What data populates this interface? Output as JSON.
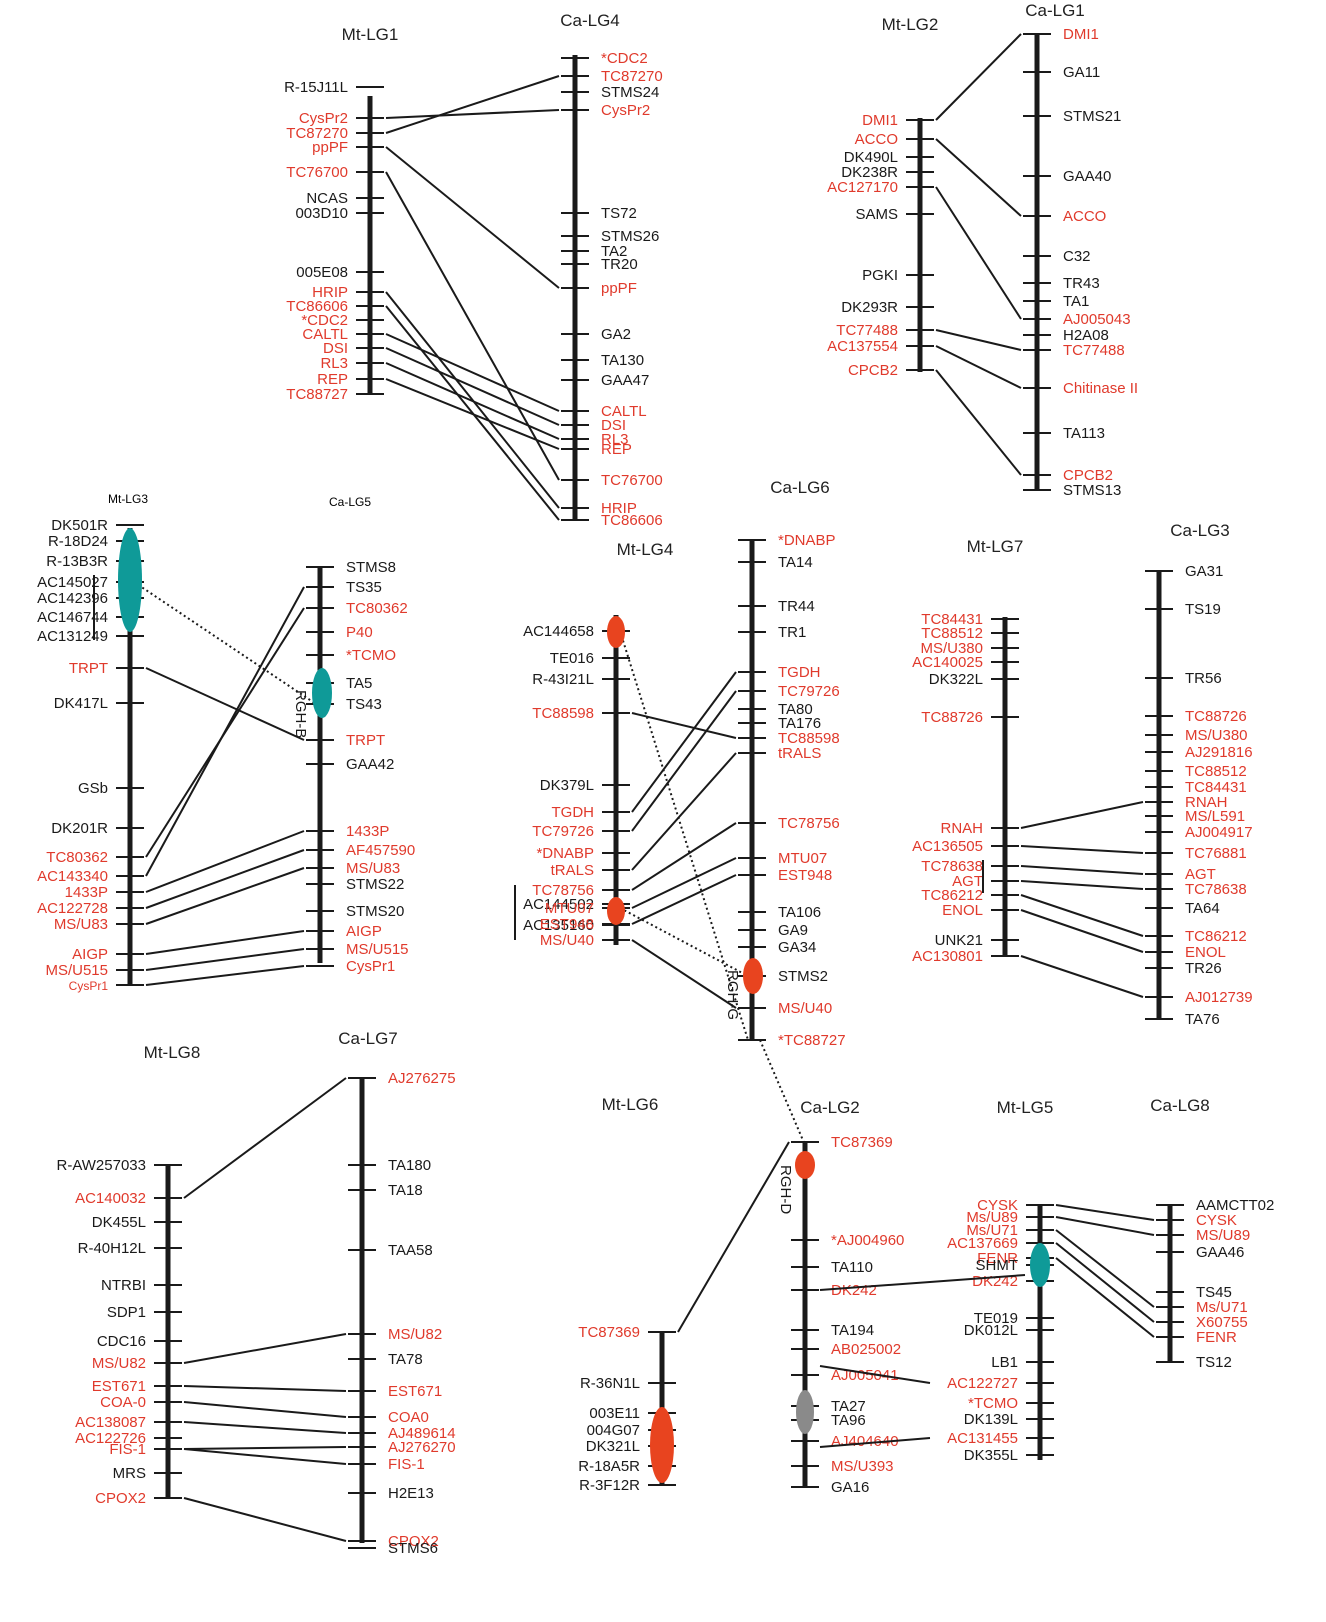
{
  "colors": {
    "red": "#e03a2c",
    "black": "#1a1a1a",
    "teal": "#0f9a98",
    "orange": "#e8441f",
    "grey": "#8a8a8a"
  },
  "pairs": [
    {
      "left": {
        "title": "Mt-LG1",
        "loci": [
          {
            "n": "R-15J11L",
            "c": "k"
          },
          {
            "n": "CysPr2",
            "c": "r"
          },
          {
            "n": "TC87270",
            "c": "r"
          },
          {
            "n": "ppPF",
            "c": "r"
          },
          {
            "n": "TC76700",
            "c": "r"
          },
          {
            "n": "NCAS",
            "c": "k"
          },
          {
            "n": "003D10",
            "c": "k"
          },
          {
            "n": "005E08",
            "c": "k"
          },
          {
            "n": "HRIP",
            "c": "r"
          },
          {
            "n": "TC86606",
            "c": "r"
          },
          {
            "n": "*CDC2",
            "c": "r"
          },
          {
            "n": "CALTL",
            "c": "r"
          },
          {
            "n": "DSI",
            "c": "r"
          },
          {
            "n": "RL3",
            "c": "r"
          },
          {
            "n": "REP",
            "c": "r"
          },
          {
            "n": "TC88727",
            "c": "r"
          }
        ]
      },
      "right": {
        "title": "Ca-LG4",
        "loci": [
          {
            "n": "*CDC2",
            "c": "r"
          },
          {
            "n": "TC87270",
            "c": "r"
          },
          {
            "n": "STMS24",
            "c": "k"
          },
          {
            "n": "CysPr2",
            "c": "r"
          },
          {
            "n": "TS72",
            "c": "k"
          },
          {
            "n": "STMS26",
            "c": "k"
          },
          {
            "n": "TA2",
            "c": "k"
          },
          {
            "n": "TR20",
            "c": "k"
          },
          {
            "n": "ppPF",
            "c": "r"
          },
          {
            "n": "GA2",
            "c": "k"
          },
          {
            "n": "TA130",
            "c": "k"
          },
          {
            "n": "GAA47",
            "c": "k"
          },
          {
            "n": "CALTL",
            "c": "r"
          },
          {
            "n": "DSI",
            "c": "r"
          },
          {
            "n": "RL3",
            "c": "r"
          },
          {
            "n": "REP",
            "c": "r"
          },
          {
            "n": "TC76700",
            "c": "r"
          },
          {
            "n": "HRIP",
            "c": "r"
          },
          {
            "n": "TC86606",
            "c": "r"
          }
        ]
      }
    },
    {
      "left": {
        "title": "Mt-LG2",
        "loci": [
          {
            "n": "DMI1",
            "c": "r"
          },
          {
            "n": "ACCO",
            "c": "r"
          },
          {
            "n": "DK490L",
            "c": "k"
          },
          {
            "n": "DK238R",
            "c": "k"
          },
          {
            "n": "AC127170",
            "c": "r"
          },
          {
            "n": "SAMS",
            "c": "k"
          },
          {
            "n": "PGKI",
            "c": "k"
          },
          {
            "n": "DK293R",
            "c": "k"
          },
          {
            "n": "TC77488",
            "c": "r"
          },
          {
            "n": "AC137554",
            "c": "r"
          },
          {
            "n": "CPCB2",
            "c": "r"
          }
        ]
      },
      "right": {
        "title": "Ca-LG1",
        "loci": [
          {
            "n": "DMI1",
            "c": "r"
          },
          {
            "n": "GA11",
            "c": "k"
          },
          {
            "n": "STMS21",
            "c": "k"
          },
          {
            "n": "GAA40",
            "c": "k"
          },
          {
            "n": "ACCO",
            "c": "r"
          },
          {
            "n": "C32",
            "c": "k"
          },
          {
            "n": "TR43",
            "c": "k"
          },
          {
            "n": "TA1",
            "c": "k"
          },
          {
            "n": "AJ005043",
            "c": "r"
          },
          {
            "n": "H2A08",
            "c": "k"
          },
          {
            "n": "TC77488",
            "c": "r"
          },
          {
            "n": "Chitinase II",
            "c": "r"
          },
          {
            "n": "TA113",
            "c": "k"
          },
          {
            "n": "CPCB2",
            "c": "r"
          },
          {
            "n": "STMS13",
            "c": "k"
          }
        ]
      }
    },
    {
      "left": {
        "title": "Mt-LG3",
        "loci": [
          {
            "n": "DK501R",
            "c": "k"
          },
          {
            "n": "R-18D24",
            "c": "k"
          },
          {
            "n": "R-13B3R",
            "c": "k"
          },
          {
            "n": "AC145027",
            "c": "k"
          },
          {
            "n": "AC142396",
            "c": "k"
          },
          {
            "n": "AC146744",
            "c": "k"
          },
          {
            "n": "AC131249",
            "c": "k"
          },
          {
            "n": "TRPT",
            "c": "r"
          },
          {
            "n": "DK417L",
            "c": "k"
          },
          {
            "n": "GSb",
            "c": "k"
          },
          {
            "n": "DK201R",
            "c": "k"
          },
          {
            "n": "TC80362",
            "c": "r"
          },
          {
            "n": "AC143340",
            "c": "r"
          },
          {
            "n": "1433P",
            "c": "r"
          },
          {
            "n": "AC122728",
            "c": "r"
          },
          {
            "n": "MS/U83",
            "c": "r"
          },
          {
            "n": "AIGP",
            "c": "r"
          },
          {
            "n": "MS/U515",
            "c": "r"
          },
          {
            "n": "CysPr1",
            "c": "r"
          }
        ]
      },
      "right": {
        "title": "Ca-LG5",
        "qtl": "RGH-B",
        "loci": [
          {
            "n": "STMS8",
            "c": "k"
          },
          {
            "n": "TS35",
            "c": "k"
          },
          {
            "n": "TC80362",
            "c": "r"
          },
          {
            "n": "P40",
            "c": "r"
          },
          {
            "n": "*TCMO",
            "c": "r"
          },
          {
            "n": "TA5",
            "c": "k"
          },
          {
            "n": "TS43",
            "c": "k"
          },
          {
            "n": "TRPT",
            "c": "r"
          },
          {
            "n": "GAA42",
            "c": "k"
          },
          {
            "n": "1433P",
            "c": "r"
          },
          {
            "n": "AF457590",
            "c": "r"
          },
          {
            "n": "MS/U83",
            "c": "r"
          },
          {
            "n": "STMS22",
            "c": "k"
          },
          {
            "n": "STMS20",
            "c": "k"
          },
          {
            "n": "AIGP",
            "c": "r"
          },
          {
            "n": "MS/U515",
            "c": "r"
          },
          {
            "n": "CysPr1",
            "c": "r"
          }
        ]
      }
    },
    {
      "left": {
        "title": "Mt-LG4",
        "loci": [
          {
            "n": "AC144658",
            "c": "k"
          },
          {
            "n": "TE016",
            "c": "k"
          },
          {
            "n": "R-43I21L",
            "c": "k"
          },
          {
            "n": "TC88598",
            "c": "r"
          },
          {
            "n": "DK379L",
            "c": "k"
          },
          {
            "n": "TGDH",
            "c": "r"
          },
          {
            "n": "TC79726",
            "c": "r"
          },
          {
            "n": "*DNABP",
            "c": "r"
          },
          {
            "n": "tRALS",
            "c": "r"
          },
          {
            "n": "TC78756",
            "c": "r"
          },
          {
            "n": "AC144502",
            "c": "k"
          },
          {
            "n": "MTU07",
            "c": "r"
          },
          {
            "n": "AC135160",
            "c": "k"
          },
          {
            "n": "EST948",
            "c": "r"
          },
          {
            "n": "MS/U40",
            "c": "r"
          }
        ]
      },
      "right": {
        "title": "Ca-LG6",
        "qtl": "RGH-G",
        "loci": [
          {
            "n": "*DNABP",
            "c": "r"
          },
          {
            "n": "TA14",
            "c": "k"
          },
          {
            "n": "TR44",
            "c": "k"
          },
          {
            "n": "TR1",
            "c": "k"
          },
          {
            "n": "TGDH",
            "c": "r"
          },
          {
            "n": "TC79726",
            "c": "r"
          },
          {
            "n": "TA80",
            "c": "k"
          },
          {
            "n": "TA176",
            "c": "k"
          },
          {
            "n": "TC88598",
            "c": "r"
          },
          {
            "n": "tRALS",
            "c": "r"
          },
          {
            "n": "TC78756",
            "c": "r"
          },
          {
            "n": "MTU07",
            "c": "r"
          },
          {
            "n": "EST948",
            "c": "r"
          },
          {
            "n": "TA106",
            "c": "k"
          },
          {
            "n": "GA9",
            "c": "k"
          },
          {
            "n": "GA34",
            "c": "k"
          },
          {
            "n": "STMS2",
            "c": "k"
          },
          {
            "n": "MS/U40",
            "c": "r"
          },
          {
            "n": "*TC88727",
            "c": "r"
          }
        ]
      }
    },
    {
      "left": {
        "title": "Mt-LG7",
        "loci": [
          {
            "n": "TC84431",
            "c": "r"
          },
          {
            "n": "TC88512",
            "c": "r"
          },
          {
            "n": "MS/U380",
            "c": "r"
          },
          {
            "n": "AC140025",
            "c": "r"
          },
          {
            "n": "DK322L",
            "c": "k"
          },
          {
            "n": "TC88726",
            "c": "r"
          },
          {
            "n": "RNAH",
            "c": "r"
          },
          {
            "n": "AC136505",
            "c": "r"
          },
          {
            "n": "TC78638",
            "c": "r"
          },
          {
            "n": "AGT",
            "c": "r"
          },
          {
            "n": "TC86212",
            "c": "r"
          },
          {
            "n": "ENOL",
            "c": "r"
          },
          {
            "n": "UNK21",
            "c": "k"
          },
          {
            "n": "AC130801",
            "c": "r"
          }
        ]
      },
      "right": {
        "title": "Ca-LG3",
        "loci": [
          {
            "n": "GA31",
            "c": "k"
          },
          {
            "n": "TS19",
            "c": "k"
          },
          {
            "n": "TR56",
            "c": "k"
          },
          {
            "n": "TC88726",
            "c": "r"
          },
          {
            "n": "MS/U380",
            "c": "r"
          },
          {
            "n": "AJ291816",
            "c": "r"
          },
          {
            "n": "TC88512",
            "c": "r"
          },
          {
            "n": "TC84431",
            "c": "r"
          },
          {
            "n": "RNAH",
            "c": "r"
          },
          {
            "n": "MS/L591",
            "c": "r"
          },
          {
            "n": "AJ004917",
            "c": "r"
          },
          {
            "n": "TC76881",
            "c": "r"
          },
          {
            "n": "AGT",
            "c": "r"
          },
          {
            "n": "TC78638",
            "c": "r"
          },
          {
            "n": "TA64",
            "c": "k"
          },
          {
            "n": "TC86212",
            "c": "r"
          },
          {
            "n": "ENOL",
            "c": "r"
          },
          {
            "n": "TR26",
            "c": "k"
          },
          {
            "n": "AJ012739",
            "c": "r"
          },
          {
            "n": "TA76",
            "c": "k"
          }
        ]
      }
    },
    {
      "left": {
        "title": "Mt-LG8",
        "loci": [
          {
            "n": "R-AW257033",
            "c": "k"
          },
          {
            "n": "AC140032",
            "c": "r"
          },
          {
            "n": "DK455L",
            "c": "k"
          },
          {
            "n": "R-40H12L",
            "c": "k"
          },
          {
            "n": "NTRBI",
            "c": "k"
          },
          {
            "n": "SDP1",
            "c": "k"
          },
          {
            "n": "CDC16",
            "c": "k"
          },
          {
            "n": "MS/U82",
            "c": "r"
          },
          {
            "n": "EST671",
            "c": "r"
          },
          {
            "n": "COA-0",
            "c": "r"
          },
          {
            "n": "AC138087",
            "c": "r"
          },
          {
            "n": "AC122726",
            "c": "r"
          },
          {
            "n": "FIS-1",
            "c": "r"
          },
          {
            "n": "MRS",
            "c": "k"
          },
          {
            "n": "CPOX2",
            "c": "r"
          }
        ]
      },
      "right": {
        "title": "Ca-LG7",
        "loci": [
          {
            "n": "AJ276275",
            "c": "r"
          },
          {
            "n": "TA180",
            "c": "k"
          },
          {
            "n": "TA18",
            "c": "k"
          },
          {
            "n": "TAA58",
            "c": "k"
          },
          {
            "n": "MS/U82",
            "c": "r"
          },
          {
            "n": "TA78",
            "c": "k"
          },
          {
            "n": "EST671",
            "c": "r"
          },
          {
            "n": "COA0",
            "c": "r"
          },
          {
            "n": "AJ489614",
            "c": "r"
          },
          {
            "n": "AJ276270",
            "c": "r"
          },
          {
            "n": "FIS-1",
            "c": "r"
          },
          {
            "n": "H2E13",
            "c": "k"
          },
          {
            "n": "CPOX2",
            "c": "r"
          },
          {
            "n": "STMS6",
            "c": "k"
          }
        ]
      }
    },
    {
      "left": {
        "title": "Mt-LG6",
        "loci": [
          {
            "n": "TC87369",
            "c": "r"
          },
          {
            "n": "R-36N1L",
            "c": "k"
          },
          {
            "n": "003E11",
            "c": "k"
          },
          {
            "n": "004G07",
            "c": "k"
          },
          {
            "n": "DK321L",
            "c": "k"
          },
          {
            "n": "R-18A5R",
            "c": "k"
          },
          {
            "n": "R-3F12R",
            "c": "k"
          }
        ]
      },
      "right": {
        "title": "Ca-LG2",
        "qtl": "RGH-D",
        "loci": [
          {
            "n": "TC87369",
            "c": "r"
          },
          {
            "n": "*AJ004960",
            "c": "r"
          },
          {
            "n": "TA110",
            "c": "k"
          },
          {
            "n": "DK242",
            "c": "r"
          },
          {
            "n": "TA194",
            "c": "k"
          },
          {
            "n": "AB025002",
            "c": "r"
          },
          {
            "n": "AJ005041",
            "c": "r"
          },
          {
            "n": "TA27",
            "c": "k"
          },
          {
            "n": "TA96",
            "c": "k"
          },
          {
            "n": "AJ404640",
            "c": "r"
          },
          {
            "n": "MS/U393",
            "c": "r"
          },
          {
            "n": "GA16",
            "c": "k"
          }
        ]
      }
    },
    {
      "left": {
        "title": "Mt-LG5",
        "loci": [
          {
            "n": "CYSK",
            "c": "r"
          },
          {
            "n": "Ms/U89",
            "c": "r"
          },
          {
            "n": "Ms/U71",
            "c": "r"
          },
          {
            "n": "AC137669",
            "c": "r"
          },
          {
            "n": "FENR",
            "c": "r"
          },
          {
            "n": "SHMT",
            "c": "k"
          },
          {
            "n": "DK242",
            "c": "r"
          },
          {
            "n": "TE019",
            "c": "k"
          },
          {
            "n": "DK012L",
            "c": "k"
          },
          {
            "n": "LB1",
            "c": "k"
          },
          {
            "n": "AC122727",
            "c": "r"
          },
          {
            "n": "*TCMO",
            "c": "r"
          },
          {
            "n": "DK139L",
            "c": "k"
          },
          {
            "n": "AC131455",
            "c": "r"
          },
          {
            "n": "DK355L",
            "c": "k"
          }
        ]
      },
      "right": {
        "title": "Ca-LG8",
        "loci": [
          {
            "n": "AAMCTT02",
            "c": "k"
          },
          {
            "n": "CYSK",
            "c": "r"
          },
          {
            "n": "MS/U89",
            "c": "r"
          },
          {
            "n": "GAA46",
            "c": "k"
          },
          {
            "n": "TS45",
            "c": "k"
          },
          {
            "n": "Ms/U71",
            "c": "r"
          },
          {
            "n": "X60755",
            "c": "r"
          },
          {
            "n": "FENR",
            "c": "r"
          },
          {
            "n": "TS12",
            "c": "k"
          }
        ]
      }
    }
  ]
}
